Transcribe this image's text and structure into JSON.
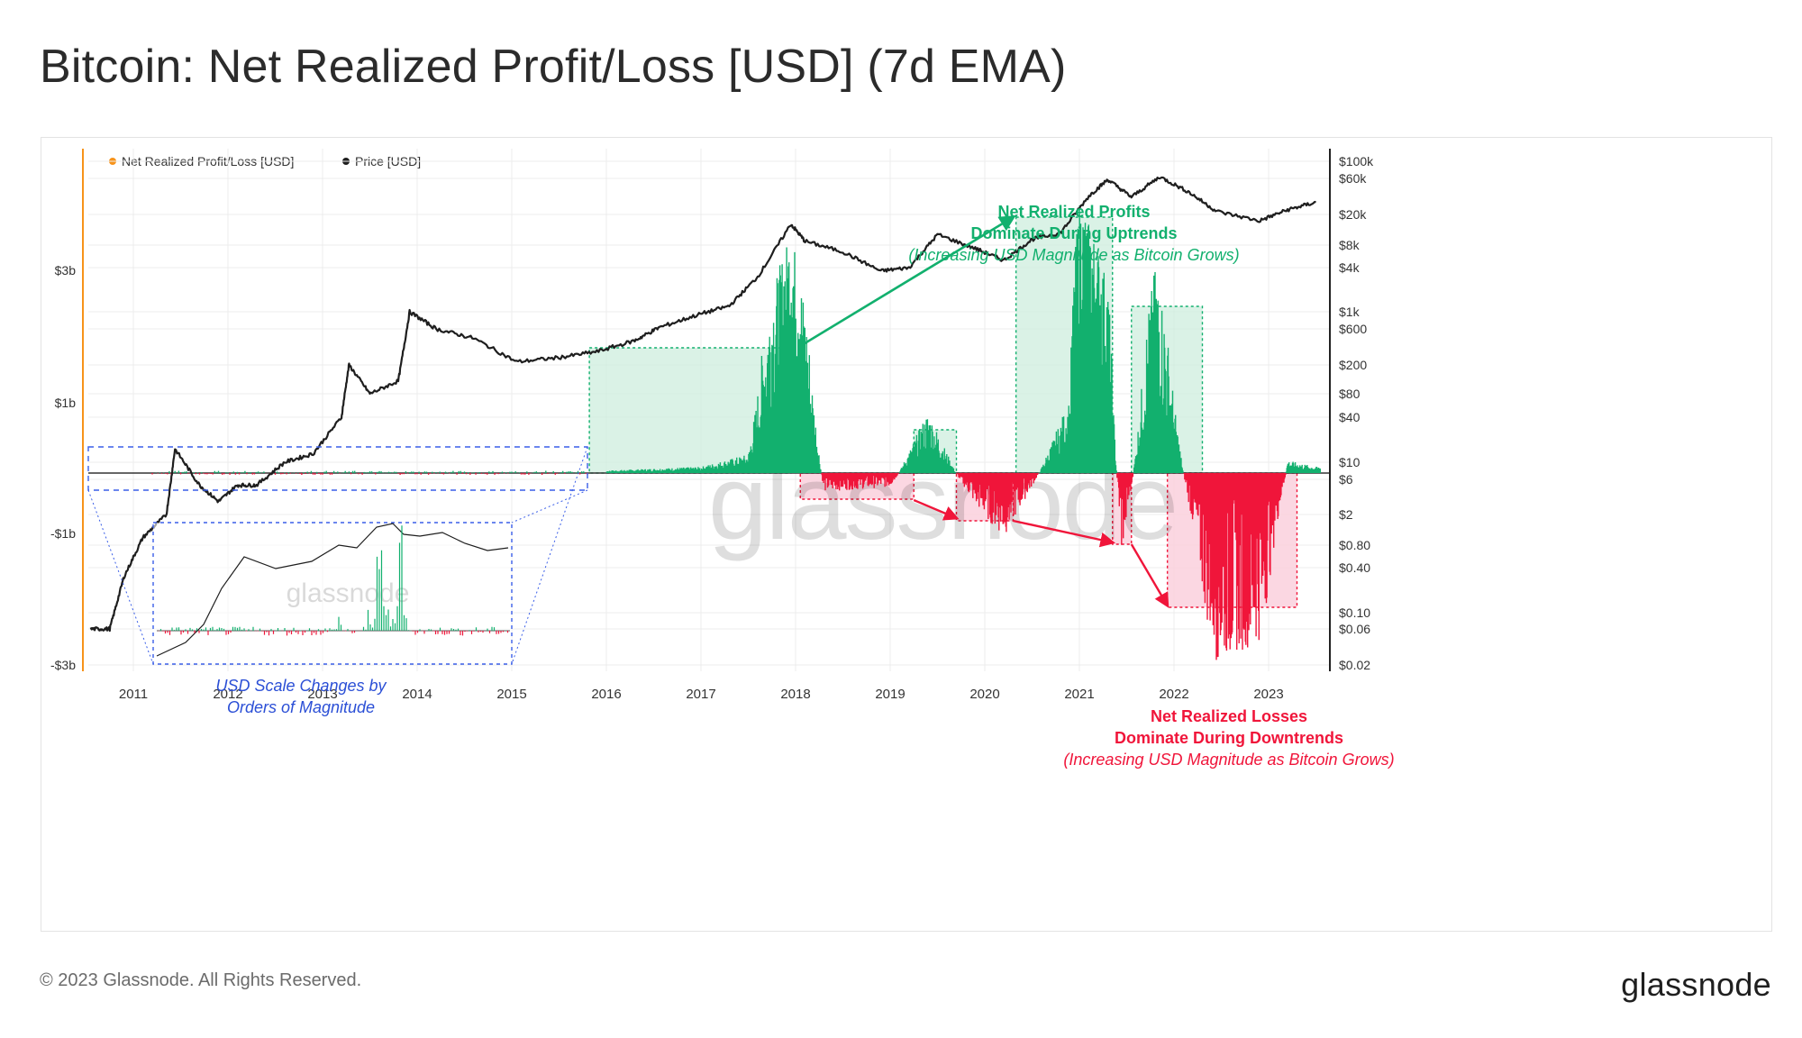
{
  "title": "Bitcoin: Net Realized Profit/Loss [USD] (7d EMA)",
  "footer": "© 2023 Glassnode. All Rights Reserved.",
  "brand": "glassnode",
  "colors": {
    "profit": "#12b06e",
    "loss": "#f0153a",
    "price": "#1e1e1e",
    "net_legend": "#f7931a",
    "box_fill": "#cdeedd",
    "loss_box_fill": "#fad0dd",
    "inset_border": "#3a5ee8"
  },
  "chart_data": {
    "type": "line",
    "legend": [
      {
        "name": "Net Realized Profit/Loss [USD]",
        "color": "#f7931a"
      },
      {
        "name": "Price [USD]",
        "color": "#1e1e1e"
      }
    ],
    "legend_position": "top-left",
    "grid": true,
    "x_ticks": [
      "2011",
      "2012",
      "2013",
      "2014",
      "2015",
      "2016",
      "2017",
      "2018",
      "2019",
      "2020",
      "2021",
      "2022",
      "2023"
    ],
    "left_axis": {
      "ticks": [
        "$3b",
        "$1b",
        "-$1b",
        "-$3b"
      ],
      "scale": "symlog"
    },
    "right_axis": {
      "ticks": [
        "$100k",
        "$60k",
        "$20k",
        "$8k",
        "$4k",
        "$1k",
        "$600",
        "$200",
        "$80",
        "$40",
        "$10",
        "$6",
        "$2",
        "$0.80",
        "$0.40",
        "$0.10",
        "$0.06",
        "$0.02"
      ],
      "scale": "log"
    },
    "price_series": [
      {
        "date": 2010.55,
        "price": 0.06
      },
      {
        "date": 2010.75,
        "price": 0.06
      },
      {
        "date": 2010.9,
        "price": 0.3
      },
      {
        "date": 2011.1,
        "price": 1.0
      },
      {
        "date": 2011.35,
        "price": 2
      },
      {
        "date": 2011.44,
        "price": 15
      },
      {
        "date": 2011.7,
        "price": 5
      },
      {
        "date": 2011.9,
        "price": 3
      },
      {
        "date": 2012.1,
        "price": 5
      },
      {
        "date": 2012.3,
        "price": 5
      },
      {
        "date": 2012.6,
        "price": 10
      },
      {
        "date": 2012.9,
        "price": 13
      },
      {
        "date": 2013.2,
        "price": 40
      },
      {
        "date": 2013.28,
        "price": 200
      },
      {
        "date": 2013.5,
        "price": 80
      },
      {
        "date": 2013.8,
        "price": 120
      },
      {
        "date": 2013.92,
        "price": 1000
      },
      {
        "date": 2014.2,
        "price": 600
      },
      {
        "date": 2014.6,
        "price": 450
      },
      {
        "date": 2015.05,
        "price": 220
      },
      {
        "date": 2015.5,
        "price": 250
      },
      {
        "date": 2015.9,
        "price": 300
      },
      {
        "date": 2016.3,
        "price": 420
      },
      {
        "date": 2016.55,
        "price": 620
      },
      {
        "date": 2016.95,
        "price": 900
      },
      {
        "date": 2017.3,
        "price": 1200
      },
      {
        "date": 2017.6,
        "price": 3000
      },
      {
        "date": 2017.95,
        "price": 15000
      },
      {
        "date": 2018.1,
        "price": 9000
      },
      {
        "date": 2018.5,
        "price": 6500
      },
      {
        "date": 2018.9,
        "price": 3600
      },
      {
        "date": 2019.2,
        "price": 4000
      },
      {
        "date": 2019.5,
        "price": 11000
      },
      {
        "date": 2019.9,
        "price": 7200
      },
      {
        "date": 2020.2,
        "price": 5000
      },
      {
        "date": 2020.5,
        "price": 9500
      },
      {
        "date": 2020.8,
        "price": 11500
      },
      {
        "date": 2021.1,
        "price": 35000
      },
      {
        "date": 2021.3,
        "price": 58000
      },
      {
        "date": 2021.55,
        "price": 34000
      },
      {
        "date": 2021.85,
        "price": 63000
      },
      {
        "date": 2022.15,
        "price": 40000
      },
      {
        "date": 2022.45,
        "price": 22000
      },
      {
        "date": 2022.9,
        "price": 16500
      },
      {
        "date": 2023.2,
        "price": 23000
      },
      {
        "date": 2023.5,
        "price": 29000
      }
    ],
    "net_realized_profit_loss": [
      {
        "date": 2016.0,
        "value": 0.02
      },
      {
        "date": 2017.0,
        "value": 0.05
      },
      {
        "date": 2017.5,
        "value": 0.15
      },
      {
        "date": 2017.95,
        "value": 2.3
      },
      {
        "date": 2018.3,
        "value": -0.2
      },
      {
        "date": 2019.0,
        "value": -0.15
      },
      {
        "date": 2019.4,
        "value": 0.5
      },
      {
        "date": 2019.9,
        "value": -0.35
      },
      {
        "date": 2020.2,
        "value": -0.7
      },
      {
        "date": 2020.9,
        "value": 0.6
      },
      {
        "date": 2021.0,
        "value": 3.0
      },
      {
        "date": 2021.3,
        "value": 1.5
      },
      {
        "date": 2021.45,
        "value": -0.9
      },
      {
        "date": 2021.8,
        "value": 1.7
      },
      {
        "date": 2022.45,
        "value": -2.0
      },
      {
        "date": 2022.9,
        "value": -1.7
      },
      {
        "date": 2023.2,
        "value": 0.1
      },
      {
        "date": 2023.5,
        "value": 0.05
      }
    ],
    "annotations": {
      "profit": {
        "line1": "Net Realized Profits",
        "line2": "Dominate During Uptrends",
        "line3": "(Increasing USD Magnitude as Bitcoin Grows)"
      },
      "loss": {
        "line1": "Net Realized Losses",
        "line2": "Dominate During Downtrends",
        "line3": "(Increasing USD Magnitude as Bitcoin Grows)"
      },
      "inset": {
        "line1": "USD Scale Changes by",
        "line2": "Orders of Magnitude",
        "watermark": "glassnode"
      },
      "watermark": "glassnode"
    }
  }
}
